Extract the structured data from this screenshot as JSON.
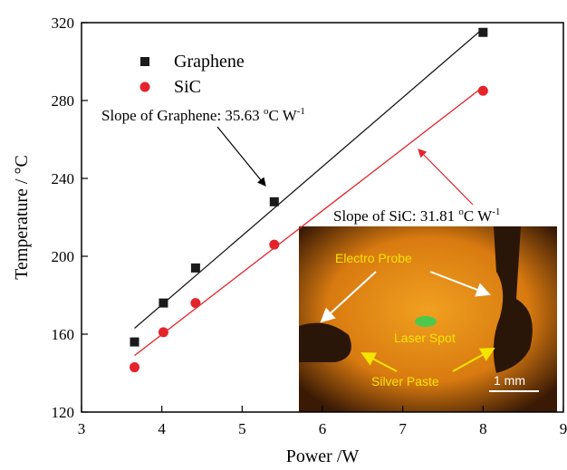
{
  "chart_data": {
    "type": "scatter",
    "xlabel": "Power /W",
    "ylabel": "Temperature / °C",
    "xlim": [
      3,
      9
    ],
    "ylim": [
      120,
      320
    ],
    "xticks": [
      3,
      4,
      5,
      6,
      7,
      8,
      9
    ],
    "yticks": [
      120,
      160,
      200,
      240,
      280,
      320
    ],
    "legend": "upper left",
    "series": [
      {
        "name": "Graphene",
        "color": "#1a1a1a",
        "marker": "square",
        "x": [
          3.66,
          4.02,
          4.42,
          5.4,
          8
        ],
        "values": [
          156,
          176,
          194,
          228,
          315
        ],
        "fit_x": [
          3.66,
          8
        ],
        "fit_values": [
          163,
          317
        ]
      },
      {
        "name": "SiC",
        "color": "#e3242b",
        "marker": "circle",
        "x": [
          3.66,
          4.02,
          4.42,
          5.4,
          8
        ],
        "values": [
          143,
          161,
          176,
          206,
          285
        ],
        "fit_x": [
          3.66,
          8
        ],
        "fit_values": [
          149,
          287
        ]
      }
    ],
    "annotations": [
      {
        "parts": [
          "Slope of Graphene: 35.63 ",
          "o",
          "C W",
          "-1"
        ]
      },
      {
        "parts": [
          "Slope of SiC: 31.81 ",
          "o",
          "C W",
          "-1"
        ]
      }
    ]
  },
  "inset": {
    "labels": [
      "Electro Probe",
      "Laser Spot",
      "Silver Paste",
      "1 mm"
    ]
  }
}
